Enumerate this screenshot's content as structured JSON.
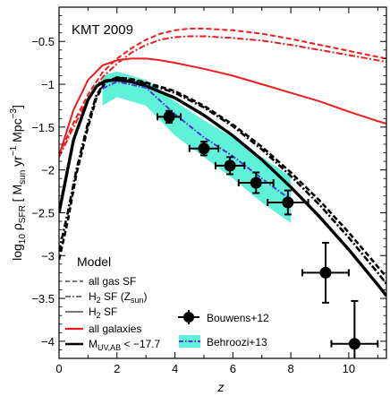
{
  "chart_data": {
    "type": "line",
    "annotation": "KMT 2009",
    "xlabel": "z",
    "ylabel_base": "log",
    "ylabel_sub": "10",
    "ylabel_rho": " ρ",
    "ylabel_rho_sub": "SFR",
    "ylabel_open": " [ M",
    "ylabel_sun": "sun",
    "ylabel_mid": " yr",
    "ylabel_exp1": "−1",
    "ylabel_mid2": " Mpc",
    "ylabel_exp2": "−3",
    "ylabel_close": "]",
    "xlim": [
      0,
      11.3
    ],
    "ylim": [
      -4.2,
      -0.1
    ],
    "xticks": [
      0,
      2,
      4,
      6,
      8,
      10
    ],
    "yticks": [
      -4,
      -3.5,
      -3,
      -2.5,
      -2,
      -1.5,
      -1,
      -0.5
    ],
    "xtick_labels": [
      "0",
      "2",
      "4",
      "6",
      "8",
      "10"
    ],
    "ytick_labels": [
      "−4",
      "−3.5",
      "−3",
      "−2.5",
      "−2",
      "−1.5",
      "−1",
      "−0.5"
    ],
    "colors": {
      "all_galaxies": "#ee1c1c",
      "bright": "#000000",
      "behroozi_line": "#4a3bd6",
      "behroozi_band": "#5ff2d9"
    },
    "series": [
      {
        "group": "all galaxies",
        "style": "gas",
        "x": [
          0,
          0.5,
          1,
          1.5,
          2,
          2.5,
          3,
          3.5,
          4,
          4.5,
          5,
          6,
          7,
          8,
          9,
          10,
          11,
          11.3
        ],
        "y": [
          -1.82,
          -1.45,
          -1.12,
          -0.86,
          -0.7,
          -0.58,
          -0.48,
          -0.41,
          -0.37,
          -0.35,
          -0.35,
          -0.37,
          -0.41,
          -0.47,
          -0.54,
          -0.61,
          -0.68,
          -0.7
        ]
      },
      {
        "group": "all galaxies",
        "style": "h2z",
        "x": [
          0,
          0.5,
          1,
          1.5,
          2,
          2.5,
          3,
          3.5,
          4,
          4.5,
          5,
          6,
          7,
          8,
          9,
          10,
          11,
          11.3
        ],
        "y": [
          -1.85,
          -1.5,
          -1.17,
          -0.92,
          -0.76,
          -0.63,
          -0.54,
          -0.48,
          -0.45,
          -0.44,
          -0.44,
          -0.46,
          -0.49,
          -0.54,
          -0.6,
          -0.66,
          -0.72,
          -0.74
        ]
      },
      {
        "group": "all galaxies",
        "style": "h2",
        "x": [
          0,
          0.5,
          1,
          1.5,
          2,
          2.5,
          3,
          3.5,
          4,
          5,
          6,
          7,
          8,
          9,
          10,
          11,
          11.3
        ],
        "y": [
          -1.83,
          -1.3,
          -0.95,
          -0.78,
          -0.72,
          -0.7,
          -0.7,
          -0.72,
          -0.75,
          -0.82,
          -0.9,
          -1.0,
          -1.1,
          -1.2,
          -1.32,
          -1.43,
          -1.46
        ]
      },
      {
        "group": "bright",
        "style": "gas",
        "x": [
          0,
          0.3,
          0.6,
          1,
          1.3,
          1.6,
          2,
          2.5,
          3,
          4,
          5,
          6,
          7,
          8,
          9,
          10,
          11,
          11.3
        ],
        "y": [
          -3.05,
          -2.6,
          -2.05,
          -1.5,
          -1.15,
          -0.98,
          -0.92,
          -0.94,
          -0.98,
          -1.08,
          -1.25,
          -1.47,
          -1.73,
          -2.03,
          -2.36,
          -2.73,
          -3.13,
          -3.25
        ]
      },
      {
        "group": "bright",
        "style": "h2z",
        "x": [
          0,
          0.3,
          0.6,
          1,
          1.3,
          1.6,
          2,
          2.5,
          3,
          4,
          5,
          6,
          7,
          8,
          9,
          10,
          11,
          11.3
        ],
        "y": [
          -2.95,
          -2.5,
          -2.0,
          -1.45,
          -1.12,
          -0.97,
          -0.92,
          -0.95,
          -0.99,
          -1.1,
          -1.27,
          -1.49,
          -1.76,
          -2.07,
          -2.41,
          -2.79,
          -3.2,
          -3.33
        ]
      },
      {
        "group": "bright",
        "style": "h2",
        "x": [
          0,
          0.5,
          1,
          1.3,
          1.6,
          2,
          2.5,
          3,
          4,
          5,
          6,
          7,
          8,
          9,
          10,
          11,
          11.3
        ],
        "y": [
          -2.5,
          -1.65,
          -1.18,
          -1.02,
          -0.96,
          -0.95,
          -0.97,
          -1.02,
          -1.16,
          -1.36,
          -1.6,
          -1.88,
          -2.2,
          -2.55,
          -2.93,
          -3.34,
          -3.47
        ]
      }
    ],
    "behroozi": {
      "x": [
        1.5,
        2,
        3,
        4,
        5,
        6,
        7,
        8
      ],
      "y": [
        -1.05,
        -0.97,
        -1.04,
        -1.35,
        -1.62,
        -1.84,
        -2.1,
        -2.35
      ],
      "band_hi": [
        -0.9,
        -0.85,
        -0.95,
        -1.2,
        -1.42,
        -1.62,
        -1.85,
        -2.08
      ],
      "band_lo": [
        -1.25,
        -1.15,
        -1.25,
        -1.6,
        -1.85,
        -2.1,
        -2.38,
        -2.62
      ]
    },
    "bouwens": {
      "x": [
        3.8,
        5.0,
        5.9,
        6.8,
        7.9,
        9.2,
        10.2
      ],
      "y": [
        -1.38,
        -1.75,
        -1.95,
        -2.15,
        -2.38,
        -3.2,
        -4.03
      ],
      "xerr": [
        0.4,
        0.5,
        0.5,
        0.6,
        0.7,
        0.8,
        0.8
      ],
      "yerr": [
        0.07,
        0.08,
        0.1,
        0.12,
        0.14,
        0.35,
        0.5
      ]
    },
    "legend": {
      "model_title": "Model",
      "model_entries": [
        {
          "style": "gas",
          "label": "all gas SF"
        },
        {
          "style": "h2z",
          "label_base": "H",
          "label_sub": "2",
          "label_rest": " SF (Z",
          "label_sub2": "sun",
          "label_end": ")"
        },
        {
          "style": "h2",
          "label_base": "H",
          "label_sub": "2",
          "label_rest": " SF"
        }
      ],
      "group_entries": [
        {
          "color": "all_galaxies",
          "label": "all galaxies"
        },
        {
          "color": "bright",
          "label_base": "M",
          "label_sub": "UV,AB",
          "label_rest": " < −17.7"
        }
      ],
      "data_entries": [
        {
          "marker": "errorbar",
          "label": "Bouwens+12"
        },
        {
          "marker": "band",
          "label": "Behroozi+13"
        }
      ]
    }
  }
}
